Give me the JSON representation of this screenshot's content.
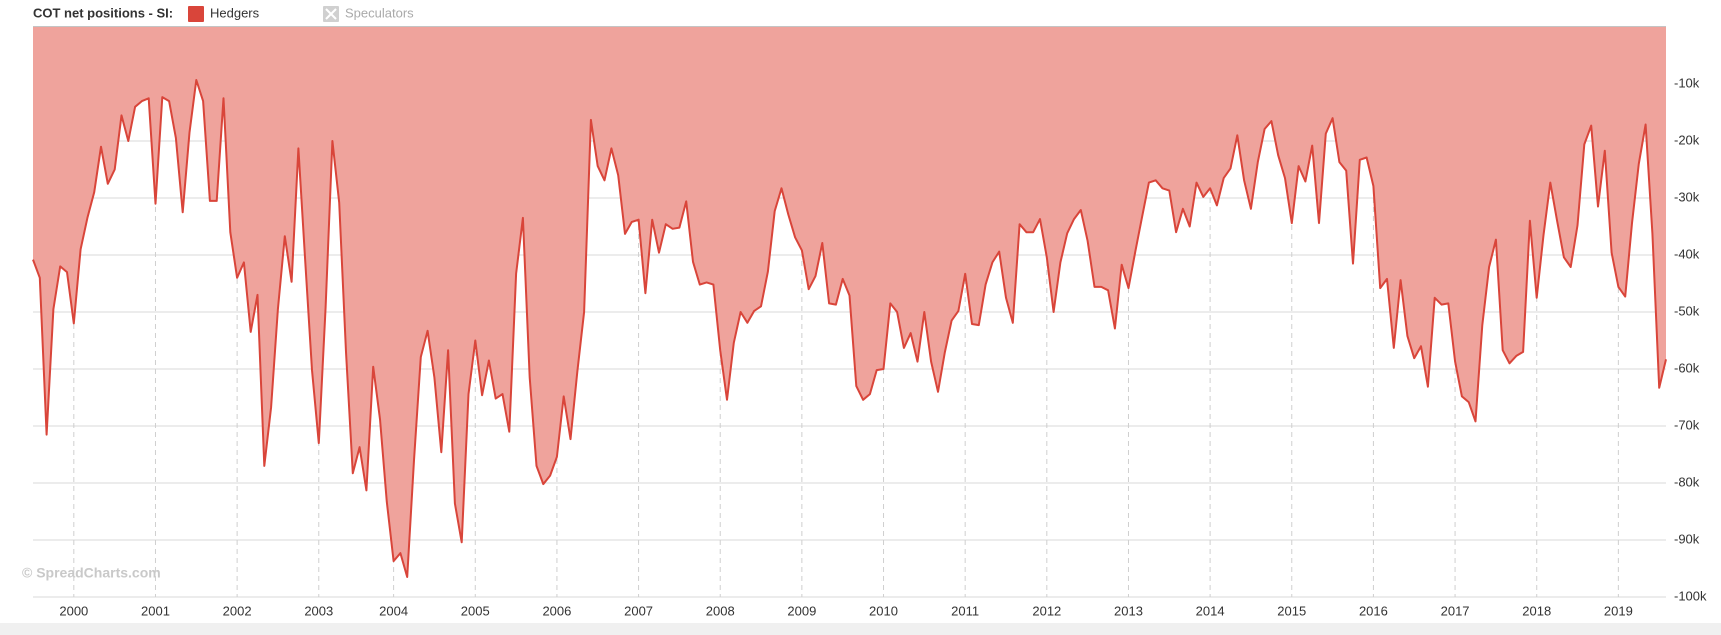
{
  "chart_data": {
    "type": "area",
    "title": "COT net positions - SI:",
    "watermark": "© SpreadCharts.com",
    "categories": [
      null,
      null,
      null,
      null,
      null,
      null,
      "2000",
      null,
      null,
      null,
      null,
      null,
      null,
      null,
      null,
      null,
      null,
      null,
      "2001",
      null,
      null,
      null,
      null,
      null,
      null,
      null,
      null,
      null,
      null,
      null,
      "2002",
      null,
      null,
      null,
      null,
      null,
      null,
      null,
      null,
      null,
      null,
      null,
      "2003",
      null,
      null,
      null,
      null,
      null,
      null,
      null,
      null,
      null,
      null,
      "2004",
      null,
      null,
      null,
      null,
      null,
      null,
      null,
      null,
      null,
      null,
      null,
      "2005",
      null,
      null,
      null,
      null,
      null,
      null,
      null,
      null,
      null,
      null,
      null,
      "2006",
      null,
      null,
      null,
      null,
      null,
      null,
      null,
      null,
      null,
      null,
      null,
      "2007",
      null,
      null,
      null,
      null,
      null,
      null,
      null,
      null,
      null,
      null,
      null,
      "2008",
      null,
      null,
      null,
      null,
      null,
      null,
      null,
      null,
      null,
      null,
      null,
      "2009",
      null,
      null,
      null,
      null,
      null,
      null,
      null,
      null,
      null,
      null,
      null,
      "2010",
      null,
      null,
      null,
      null,
      null,
      null,
      null,
      null,
      null,
      null,
      null,
      "2011",
      null,
      null,
      null,
      null,
      null,
      null,
      null,
      null,
      null,
      null,
      null,
      "2012",
      null,
      null,
      null,
      null,
      null,
      null,
      null,
      null,
      null,
      null,
      null,
      "2013",
      null,
      null,
      null,
      null,
      null,
      null,
      null,
      null,
      null,
      null,
      null,
      "2014",
      null,
      null,
      null,
      null,
      null,
      null,
      null,
      null,
      null,
      null,
      null,
      "2015",
      null,
      null,
      null,
      null,
      null,
      null,
      null,
      null,
      null,
      null,
      null,
      "2016",
      null,
      null,
      null,
      null,
      null,
      null,
      null,
      null,
      null,
      null,
      null,
      "2017",
      null,
      null,
      null,
      null,
      null,
      null,
      null,
      null,
      null,
      null,
      null,
      "2018",
      null,
      null,
      null,
      null,
      null,
      null,
      null,
      null,
      null,
      null,
      null,
      "2019",
      null,
      null,
      null,
      null,
      null,
      null,
      null
    ],
    "series": [
      {
        "name": "Hedgers",
        "color": "#d9453a",
        "fill": "#efa39c",
        "visible": true,
        "values": [
          -40800,
          -44000,
          -71500,
          -49500,
          -42000,
          -43000,
          -52000,
          -39000,
          -33500,
          -29000,
          -21000,
          -27500,
          -25000,
          -15500,
          -20000,
          -14000,
          -13000,
          -12500,
          -31000,
          -12300,
          -13000,
          -19500,
          -32500,
          -18500,
          -9300,
          -13000,
          -30500,
          -30500,
          -12500,
          -36000,
          -44000,
          -41300,
          -53500,
          -47000,
          -77000,
          -66700,
          -49500,
          -36700,
          -44700,
          -21300,
          -41000,
          -60200,
          -73000,
          -49200,
          -20000,
          -30800,
          -57000,
          -78300,
          -73700,
          -81300,
          -59600,
          -68800,
          -83300,
          -93700,
          -92300,
          -96500,
          -76000,
          -57900,
          -53300,
          -61500,
          -74600,
          -56700,
          -83600,
          -90400,
          -64400,
          -55000,
          -64600,
          -58500,
          -65200,
          -64400,
          -71000,
          -43300,
          -33500,
          -61500,
          -77000,
          -80200,
          -78700,
          -75400,
          -64800,
          -72300,
          -60500,
          -50000,
          -16300,
          -24400,
          -26900,
          -21300,
          -26000,
          -36300,
          -34200,
          -33800,
          -46700,
          -33800,
          -39600,
          -34600,
          -35400,
          -35200,
          -30600,
          -41200,
          -45200,
          -44800,
          -45200,
          -56700,
          -65400,
          -55400,
          -50000,
          -51900,
          -49800,
          -49000,
          -42900,
          -32300,
          -28300,
          -32900,
          -36900,
          -39200,
          -46000,
          -43700,
          -37900,
          -48500,
          -48700,
          -44200,
          -47100,
          -63000,
          -65400,
          -64400,
          -60200,
          -60000,
          -48500,
          -50000,
          -56300,
          -53700,
          -58700,
          -50000,
          -58700,
          -64000,
          -57100,
          -51500,
          -49800,
          -43300,
          -52100,
          -52300,
          -45200,
          -41300,
          -39400,
          -47500,
          -51900,
          -34600,
          -36000,
          -36000,
          -33700,
          -40400,
          -50000,
          -41300,
          -36200,
          -33700,
          -32100,
          -37500,
          -45600,
          -45600,
          -46200,
          -52900,
          -41700,
          -45800,
          -39400,
          -33300,
          -27300,
          -26900,
          -28300,
          -28700,
          -36000,
          -31900,
          -35000,
          -27300,
          -29800,
          -28300,
          -31300,
          -26500,
          -24800,
          -19000,
          -26900,
          -31900,
          -23700,
          -17900,
          -16500,
          -22500,
          -26500,
          -34400,
          -24400,
          -27100,
          -20800,
          -34400,
          -18700,
          -16000,
          -23700,
          -25200,
          -41500,
          -23300,
          -22900,
          -27900,
          -45800,
          -44200,
          -56300,
          -44400,
          -54200,
          -58100,
          -56000,
          -63100,
          -47500,
          -48700,
          -48500,
          -58700,
          -64800,
          -65800,
          -69200,
          -52300,
          -42100,
          -37300,
          -56700,
          -59000,
          -57700,
          -57000,
          -34000,
          -47500,
          -36500,
          -27300,
          -34000,
          -40400,
          -42100,
          -34800,
          -20600,
          -17300,
          -31500,
          -21700,
          -39600,
          -45600,
          -47300,
          -34400,
          -24000,
          -17100,
          -36200,
          -63300,
          -58300
        ]
      },
      {
        "name": "Speculators",
        "color": "#c8c8c8",
        "visible": false
      }
    ],
    "ylim": [
      -100000,
      0
    ],
    "yticks": [
      {
        "value": -10000,
        "label": "-10k"
      },
      {
        "value": -20000,
        "label": "-20k"
      },
      {
        "value": -30000,
        "label": "-30k"
      },
      {
        "value": -40000,
        "label": "-40k"
      },
      {
        "value": -50000,
        "label": "-50k"
      },
      {
        "value": -60000,
        "label": "-60k"
      },
      {
        "value": -70000,
        "label": "-70k"
      },
      {
        "value": -80000,
        "label": "-80k"
      },
      {
        "value": -90000,
        "label": "-90k"
      },
      {
        "value": -100000,
        "label": "-100k"
      }
    ],
    "grid": true,
    "legend": "top-left"
  }
}
